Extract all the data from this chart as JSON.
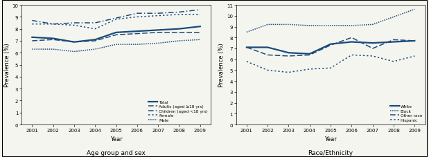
{
  "years": [
    2001,
    2002,
    2003,
    2004,
    2005,
    2006,
    2007,
    2008,
    2009
  ],
  "left_subtitle": "Age group and sex",
  "left_ylabel": "Prevalence (%)",
  "left_xlabel": "Year",
  "left_ylim": [
    0,
    10
  ],
  "left_yticks": [
    0,
    1,
    2,
    3,
    4,
    5,
    6,
    7,
    8,
    9,
    10
  ],
  "total": [
    7.3,
    7.2,
    6.9,
    7.1,
    7.7,
    7.8,
    7.9,
    8.0,
    8.2
  ],
  "adults": [
    7.0,
    7.1,
    6.9,
    7.0,
    7.5,
    7.6,
    7.7,
    7.7,
    7.7
  ],
  "children": [
    8.7,
    8.4,
    8.5,
    8.5,
    8.9,
    9.3,
    9.3,
    9.4,
    9.6
  ],
  "female": [
    8.4,
    8.4,
    8.3,
    8.0,
    8.8,
    9.0,
    9.1,
    9.2,
    9.2
  ],
  "male": [
    6.3,
    6.3,
    6.1,
    6.3,
    6.7,
    6.7,
    6.8,
    7.0,
    7.1
  ],
  "right_subtitle": "Race/Ethnicity",
  "right_ylabel": "Prevalence (%)",
  "right_xlabel": "Year",
  "right_ylim": [
    0,
    11
  ],
  "right_yticks": [
    0,
    1,
    2,
    3,
    4,
    5,
    6,
    7,
    8,
    9,
    10,
    11
  ],
  "white": [
    7.1,
    7.1,
    6.6,
    6.5,
    7.4,
    7.6,
    7.5,
    7.6,
    7.7
  ],
  "black": [
    8.5,
    9.2,
    9.2,
    9.1,
    9.1,
    9.1,
    9.2,
    9.9,
    10.6
  ],
  "other": [
    7.1,
    6.4,
    6.3,
    6.4,
    7.3,
    8.0,
    7.0,
    7.8,
    7.7
  ],
  "hispanic": [
    5.8,
    5.0,
    4.8,
    5.1,
    5.2,
    6.4,
    6.3,
    5.8,
    6.3
  ],
  "line_color": "#1a4a7a",
  "bg_color": "#f5f5f0"
}
